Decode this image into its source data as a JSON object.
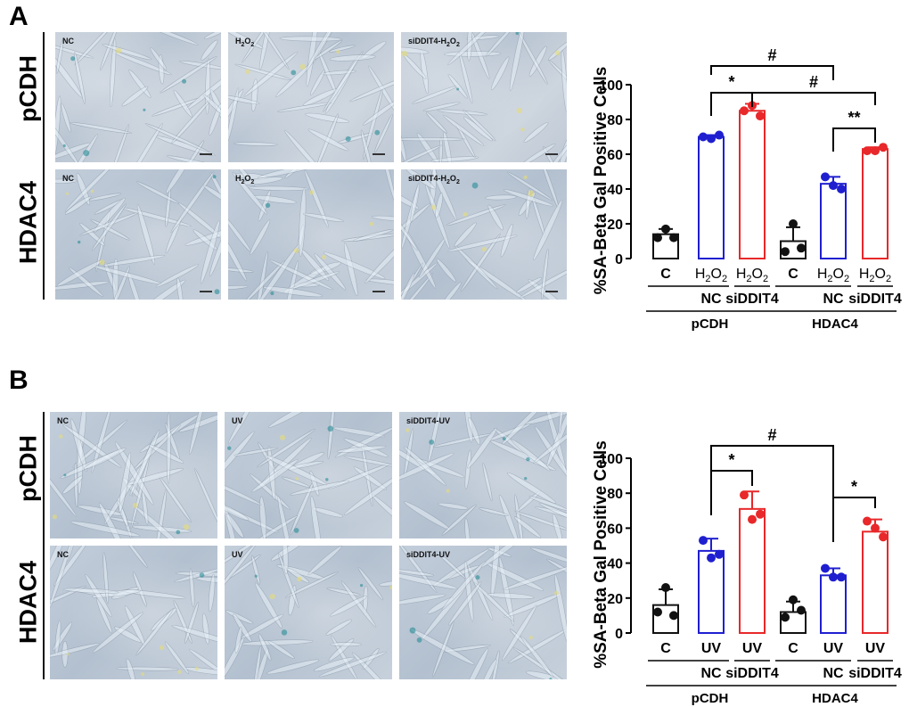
{
  "panel_a": {
    "letter": "A",
    "row_labels": [
      "pCDH",
      "HDAC4"
    ],
    "image_tags_row1": [
      "NC",
      "H2O2",
      "siDDIT4-H2O2"
    ],
    "image_tags_row2": [
      "NC",
      "H2O2",
      "siDDIT4-H2O2"
    ]
  },
  "panel_b": {
    "letter": "B",
    "row_labels": [
      "pCDH",
      "HDAC4"
    ],
    "image_tags_row1": [
      "NC",
      "UV",
      "siDDIT4-UV"
    ],
    "image_tags_row2": [
      "NC",
      "UV",
      "siDDIT4-UV"
    ]
  },
  "colors": {
    "black": "#111111",
    "blue": "#1f1fd0",
    "red": "#e8282a"
  },
  "chart_data": [
    {
      "type": "bar",
      "panel": "A",
      "ylabel": "%SA-Beta Gal Positive Cells",
      "ylim": [
        0,
        100
      ],
      "yticks": [
        0,
        20,
        40,
        60,
        80,
        100
      ],
      "treatment_labels": [
        "C",
        "H2O2",
        "H2O2",
        "C",
        "H2O2",
        "H2O2"
      ],
      "sub_groups": [
        "NC",
        "siDDIT4",
        "NC",
        "siDDIT4"
      ],
      "groups": [
        "pCDH",
        "HDAC4"
      ],
      "series": [
        {
          "name": "pCDH C",
          "color": "black",
          "mean": 14,
          "sd": 3,
          "points": [
            12,
            12,
            17
          ]
        },
        {
          "name": "pCDH NC H2O2",
          "color": "blue",
          "mean": 70,
          "sd": 1,
          "points": [
            70,
            71,
            69
          ]
        },
        {
          "name": "pCDH siDDIT4 H2O2",
          "color": "red",
          "mean": 85,
          "sd": 4,
          "points": [
            85,
            82,
            88
          ]
        },
        {
          "name": "HDAC4 C",
          "color": "black",
          "mean": 10,
          "sd": 8,
          "points": [
            4,
            6,
            20
          ]
        },
        {
          "name": "HDAC4 NC H2O2",
          "color": "blue",
          "mean": 43,
          "sd": 4,
          "points": [
            47,
            40,
            42
          ]
        },
        {
          "name": "HDAC4 siDDIT4 H2O2",
          "color": "red",
          "mean": 63,
          "sd": 1,
          "points": [
            62,
            64,
            62
          ]
        }
      ],
      "annotations": [
        {
          "label": "#",
          "from": 1,
          "to": 4
        },
        {
          "label": "*",
          "from": 1,
          "to": 2
        },
        {
          "label": "#",
          "from": 2,
          "to": 5
        },
        {
          "label": "**",
          "from": 4,
          "to": 5
        }
      ]
    },
    {
      "type": "bar",
      "panel": "B",
      "ylabel": "%SA-Beta Gal Positive Cells",
      "ylim": [
        0,
        100
      ],
      "yticks": [
        0,
        20,
        40,
        60,
        80,
        100
      ],
      "treatment_labels": [
        "C",
        "UV",
        "UV",
        "C",
        "UV",
        "UV"
      ],
      "sub_groups": [
        "NC",
        "siDDIT4",
        "NC",
        "siDDIT4"
      ],
      "groups": [
        "pCDH",
        "HDAC4"
      ],
      "series": [
        {
          "name": "pCDH C",
          "color": "black",
          "mean": 16,
          "sd": 9,
          "points": [
            12,
            10,
            26
          ]
        },
        {
          "name": "pCDH NC UV",
          "color": "blue",
          "mean": 47,
          "sd": 7,
          "points": [
            53,
            45,
            43
          ]
        },
        {
          "name": "pCDH siDDIT4 UV",
          "color": "red",
          "mean": 71,
          "sd": 10,
          "points": [
            79,
            68,
            65
          ]
        },
        {
          "name": "HDAC4 C",
          "color": "black",
          "mean": 12,
          "sd": 6,
          "points": [
            9,
            13,
            19
          ]
        },
        {
          "name": "HDAC4 NC UV",
          "color": "blue",
          "mean": 33,
          "sd": 4,
          "points": [
            37,
            32,
            32
          ]
        },
        {
          "name": "HDAC4 siDDIT4 UV",
          "color": "red",
          "mean": 58,
          "sd": 7,
          "points": [
            64,
            55,
            60
          ]
        }
      ],
      "annotations": [
        {
          "label": "#",
          "from": 1,
          "to": 4
        },
        {
          "label": "*",
          "from": 1,
          "to": 2
        },
        {
          "label": "*",
          "from": 4,
          "to": 5
        }
      ]
    }
  ]
}
